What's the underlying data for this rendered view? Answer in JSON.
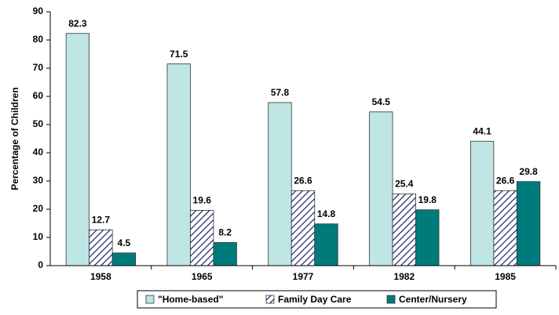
{
  "chart_data": {
    "type": "bar",
    "y_label": "Percentage of Children",
    "categories": [
      "1958",
      "1965",
      "1977",
      "1982",
      "1985"
    ],
    "series": [
      {
        "name": "\"Home-based\"",
        "color": "#bfe5e5",
        "values": [
          82.3,
          71.5,
          57.8,
          54.5,
          44.1
        ]
      },
      {
        "name": "Family Day Care",
        "color": "#1f2a6b",
        "hatch": true,
        "values": [
          12.7,
          19.6,
          26.6,
          25.4,
          26.6
        ]
      },
      {
        "name": "Center/Nursery",
        "color": "#007b7b",
        "values": [
          4.5,
          8.2,
          14.8,
          19.8,
          29.8
        ]
      }
    ],
    "ylim": [
      0,
      90
    ],
    "yticks": [
      0,
      10,
      20,
      30,
      40,
      50,
      60,
      70,
      80,
      90
    ],
    "grid": false,
    "legend": "bottom"
  }
}
